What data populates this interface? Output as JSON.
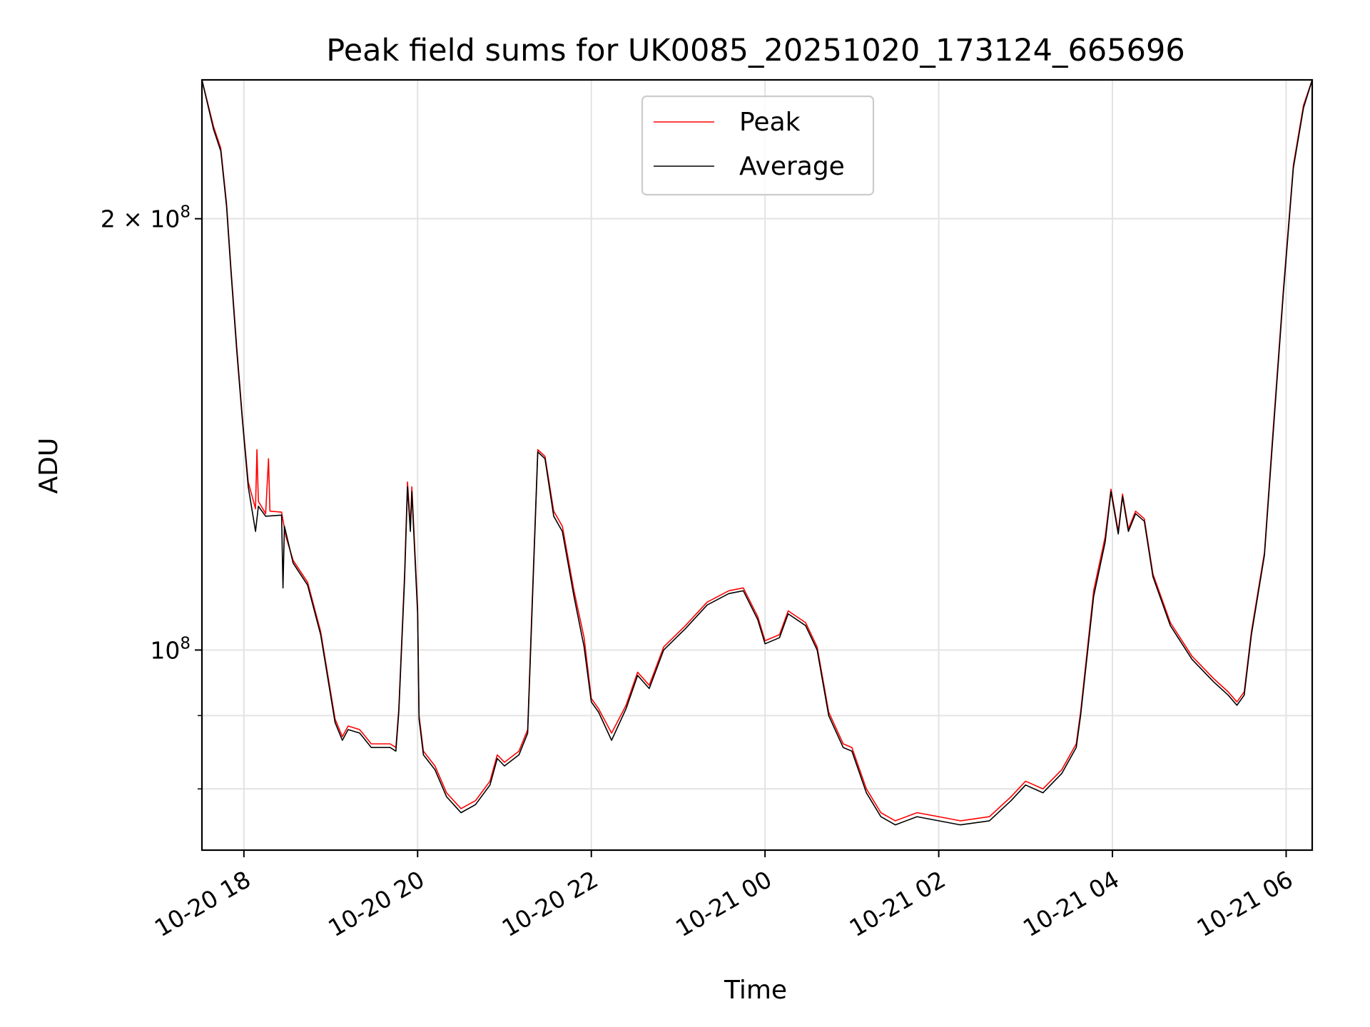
{
  "chart_data": {
    "type": "line",
    "title": "Peak field sums for UK0085_20251020_173124_665696",
    "xlabel": "Time",
    "ylabel": "ADU",
    "y_scale": "log",
    "grid": true,
    "legend_position": "upper center",
    "xlim": [
      "2025-10-20 17:31",
      "2025-10-21 06:18"
    ],
    "ylim": [
      72500000,
      250000000
    ],
    "x_ticks": [
      {
        "value": "2025-10-20 18:00",
        "label": "10-20 18"
      },
      {
        "value": "2025-10-20 20:00",
        "label": "10-20 20"
      },
      {
        "value": "2025-10-20 22:00",
        "label": "10-20 22"
      },
      {
        "value": "2025-10-21 00:00",
        "label": "10-21 00"
      },
      {
        "value": "2025-10-21 02:00",
        "label": "10-21 02"
      },
      {
        "value": "2025-10-21 04:00",
        "label": "10-21 04"
      },
      {
        "value": "2025-10-21 06:00",
        "label": "10-21 06"
      }
    ],
    "y_ticks_major": [
      {
        "value": 100000000,
        "label_base": "10",
        "label_exp": "8",
        "label_mult": ""
      },
      {
        "value": 200000000,
        "label_base": "10",
        "label_exp": "8",
        "label_mult": "2 × "
      }
    ],
    "y_ticks_minor": [
      80000000,
      90000000
    ],
    "colors": {
      "Peak": "#ff0000",
      "Average": "#000000"
    },
    "series": [
      {
        "name": "Peak",
        "color": "#ff0000",
        "points": [
          [
            "2025-10-20 17:31",
            250000000
          ],
          [
            "2025-10-20 17:39",
            232000000
          ],
          [
            "2025-10-20 17:44",
            224000000
          ],
          [
            "2025-10-20 17:48",
            205000000
          ],
          [
            "2025-10-20 17:51",
            185000000
          ],
          [
            "2025-10-20 17:55",
            163000000
          ],
          [
            "2025-10-20 17:59",
            145000000
          ],
          [
            "2025-10-20 18:03",
            131000000
          ],
          [
            "2025-10-20 18:08",
            125500000
          ],
          [
            "2025-10-20 18:09",
            138000000
          ],
          [
            "2025-10-20 18:10",
            127000000
          ],
          [
            "2025-10-20 18:15",
            124500000
          ],
          [
            "2025-10-20 18:17",
            136000000
          ],
          [
            "2025-10-20 18:18",
            125000000
          ],
          [
            "2025-10-20 18:26",
            124800000
          ],
          [
            "2025-10-20 18:29",
            120000000
          ],
          [
            "2025-10-20 18:34",
            115500000
          ],
          [
            "2025-10-20 18:44",
            111500000
          ],
          [
            "2025-10-20 18:53",
            103000000
          ],
          [
            "2025-10-20 19:03",
            89500000
          ],
          [
            "2025-10-20 19:08",
            87000000
          ],
          [
            "2025-10-20 19:12",
            88500000
          ],
          [
            "2025-10-20 19:20",
            88000000
          ],
          [
            "2025-10-20 19:28",
            86000000
          ],
          [
            "2025-10-20 19:41",
            86000000
          ],
          [
            "2025-10-20 19:45",
            85500000
          ],
          [
            "2025-10-20 19:47",
            91000000
          ],
          [
            "2025-10-20 19:51",
            113000000
          ],
          [
            "2025-10-20 19:53",
            131000000
          ],
          [
            "2025-10-20 19:55",
            122000000
          ],
          [
            "2025-10-20 19:56",
            130000000
          ],
          [
            "2025-10-20 19:58",
            118000000
          ],
          [
            "2025-10-20 20:00",
            107000000
          ],
          [
            "2025-10-20 20:01",
            90000000
          ],
          [
            "2025-10-20 20:04",
            85000000
          ],
          [
            "2025-10-20 20:12",
            83000000
          ],
          [
            "2025-10-20 20:20",
            79500000
          ],
          [
            "2025-10-20 20:30",
            77500000
          ],
          [
            "2025-10-20 20:40",
            78500000
          ],
          [
            "2025-10-20 20:50",
            81000000
          ],
          [
            "2025-10-20 20:55",
            84500000
          ],
          [
            "2025-10-20 21:00",
            83500000
          ],
          [
            "2025-10-20 21:10",
            85000000
          ],
          [
            "2025-10-20 21:16",
            88000000
          ],
          [
            "2025-10-20 21:19",
            107000000
          ],
          [
            "2025-10-20 21:23",
            138000000
          ],
          [
            "2025-10-20 21:28",
            136500000
          ],
          [
            "2025-10-20 21:34",
            125000000
          ],
          [
            "2025-10-20 21:40",
            122000000
          ],
          [
            "2025-10-20 21:48",
            110000000
          ],
          [
            "2025-10-20 21:55",
            102000000
          ],
          [
            "2025-10-20 22:00",
            92500000
          ],
          [
            "2025-10-20 22:05",
            91000000
          ],
          [
            "2025-10-20 22:14",
            87500000
          ],
          [
            "2025-10-20 22:24",
            91500000
          ],
          [
            "2025-10-20 22:32",
            96500000
          ],
          [
            "2025-10-20 22:40",
            94500000
          ],
          [
            "2025-10-20 22:50",
            100500000
          ],
          [
            "2025-10-20 23:05",
            104000000
          ],
          [
            "2025-10-20 23:20",
            108000000
          ],
          [
            "2025-10-20 23:35",
            110000000
          ],
          [
            "2025-10-20 23:45",
            110500000
          ],
          [
            "2025-10-20 23:55",
            105500000
          ],
          [
            "2025-10-21 00:00",
            101500000
          ],
          [
            "2025-10-21 00:10",
            102500000
          ],
          [
            "2025-10-21 00:16",
            106500000
          ],
          [
            "2025-10-21 00:28",
            104500000
          ],
          [
            "2025-10-21 00:36",
            100500000
          ],
          [
            "2025-10-21 00:44",
            90500000
          ],
          [
            "2025-10-21 00:54",
            86000000
          ],
          [
            "2025-10-21 01:00",
            85500000
          ],
          [
            "2025-10-21 01:10",
            80000000
          ],
          [
            "2025-10-21 01:20",
            77000000
          ],
          [
            "2025-10-21 01:30",
            76000000
          ],
          [
            "2025-10-21 01:45",
            77000000
          ],
          [
            "2025-10-21 02:00",
            76500000
          ],
          [
            "2025-10-21 02:15",
            76000000
          ],
          [
            "2025-10-21 02:35",
            76500000
          ],
          [
            "2025-10-21 02:50",
            79000000
          ],
          [
            "2025-10-21 03:00",
            81000000
          ],
          [
            "2025-10-21 03:12",
            80000000
          ],
          [
            "2025-10-21 03:25",
            82500000
          ],
          [
            "2025-10-21 03:35",
            86000000
          ],
          [
            "2025-10-21 03:38",
            90500000
          ],
          [
            "2025-10-21 03:47",
            110000000
          ],
          [
            "2025-10-21 03:55",
            120000000
          ],
          [
            "2025-10-21 03:59",
            129500000
          ],
          [
            "2025-10-21 04:04",
            121000000
          ],
          [
            "2025-10-21 04:07",
            128500000
          ],
          [
            "2025-10-21 04:11",
            121500000
          ],
          [
            "2025-10-21 04:16",
            125000000
          ],
          [
            "2025-10-21 04:22",
            123500000
          ],
          [
            "2025-10-21 04:28",
            113000000
          ],
          [
            "2025-10-21 04:40",
            104500000
          ],
          [
            "2025-10-21 04:55",
            99000000
          ],
          [
            "2025-10-21 05:10",
            95500000
          ],
          [
            "2025-10-21 05:20",
            93500000
          ],
          [
            "2025-10-21 05:26",
            92000000
          ],
          [
            "2025-10-21 05:31",
            93500000
          ],
          [
            "2025-10-21 05:36",
            103000000
          ],
          [
            "2025-10-21 05:45",
            117000000
          ],
          [
            "2025-10-21 05:50",
            138000000
          ],
          [
            "2025-10-21 05:58",
            178000000
          ],
          [
            "2025-10-21 06:05",
            218000000
          ],
          [
            "2025-10-21 06:12",
            240000000
          ],
          [
            "2025-10-21 06:18",
            250000000
          ]
        ]
      },
      {
        "name": "Average",
        "color": "#000000",
        "points": [
          [
            "2025-10-20 17:31",
            250000000
          ],
          [
            "2025-10-20 17:39",
            231000000
          ],
          [
            "2025-10-20 17:44",
            223000000
          ],
          [
            "2025-10-20 17:48",
            204000000
          ],
          [
            "2025-10-20 17:51",
            184000000
          ],
          [
            "2025-10-20 17:55",
            162000000
          ],
          [
            "2025-10-20 17:59",
            144500000
          ],
          [
            "2025-10-20 18:03",
            130000000
          ],
          [
            "2025-10-20 18:08",
            121000000
          ],
          [
            "2025-10-20 18:10",
            126000000
          ],
          [
            "2025-10-20 18:15",
            124000000
          ],
          [
            "2025-10-20 18:26",
            124200000
          ],
          [
            "2025-10-20 18:27",
            110500000
          ],
          [
            "2025-10-20 18:28",
            122000000
          ],
          [
            "2025-10-20 18:34",
            115000000
          ],
          [
            "2025-10-20 18:44",
            111000000
          ],
          [
            "2025-10-20 18:53",
            102500000
          ],
          [
            "2025-10-20 19:03",
            89000000
          ],
          [
            "2025-10-20 19:08",
            86500000
          ],
          [
            "2025-10-20 19:12",
            88000000
          ],
          [
            "2025-10-20 19:20",
            87500000
          ],
          [
            "2025-10-20 19:28",
            85500000
          ],
          [
            "2025-10-20 19:41",
            85500000
          ],
          [
            "2025-10-20 19:45",
            85000000
          ],
          [
            "2025-10-20 19:47",
            90500000
          ],
          [
            "2025-10-20 19:51",
            112000000
          ],
          [
            "2025-10-20 19:53",
            130000000
          ],
          [
            "2025-10-20 19:55",
            121000000
          ],
          [
            "2025-10-20 19:56",
            129000000
          ],
          [
            "2025-10-20 19:58",
            117000000
          ],
          [
            "2025-10-20 20:00",
            106000000
          ],
          [
            "2025-10-20 20:01",
            89500000
          ],
          [
            "2025-10-20 20:04",
            84500000
          ],
          [
            "2025-10-20 20:12",
            82500000
          ],
          [
            "2025-10-20 20:20",
            79000000
          ],
          [
            "2025-10-20 20:30",
            77000000
          ],
          [
            "2025-10-20 20:40",
            78000000
          ],
          [
            "2025-10-20 20:50",
            80500000
          ],
          [
            "2025-10-20 20:55",
            84000000
          ],
          [
            "2025-10-20 21:00",
            83000000
          ],
          [
            "2025-10-20 21:10",
            84500000
          ],
          [
            "2025-10-20 21:16",
            87500000
          ],
          [
            "2025-10-20 21:19",
            106000000
          ],
          [
            "2025-10-20 21:23",
            137500000
          ],
          [
            "2025-10-20 21:28",
            136000000
          ],
          [
            "2025-10-20 21:34",
            124000000
          ],
          [
            "2025-10-20 21:40",
            121000000
          ],
          [
            "2025-10-20 21:48",
            109000000
          ],
          [
            "2025-10-20 21:55",
            100500000
          ],
          [
            "2025-10-20 22:00",
            92000000
          ],
          [
            "2025-10-20 22:05",
            90500000
          ],
          [
            "2025-10-20 22:14",
            86500000
          ],
          [
            "2025-10-20 22:24",
            91000000
          ],
          [
            "2025-10-20 22:32",
            96000000
          ],
          [
            "2025-10-20 22:40",
            94000000
          ],
          [
            "2025-10-20 22:50",
            100000000
          ],
          [
            "2025-10-20 23:05",
            103500000
          ],
          [
            "2025-10-20 23:20",
            107500000
          ],
          [
            "2025-10-20 23:35",
            109500000
          ],
          [
            "2025-10-20 23:45",
            110000000
          ],
          [
            "2025-10-20 23:55",
            105000000
          ],
          [
            "2025-10-21 00:00",
            101000000
          ],
          [
            "2025-10-21 00:10",
            102000000
          ],
          [
            "2025-10-21 00:16",
            106000000
          ],
          [
            "2025-10-21 00:28",
            104000000
          ],
          [
            "2025-10-21 00:36",
            100000000
          ],
          [
            "2025-10-21 00:44",
            90000000
          ],
          [
            "2025-10-21 00:54",
            85500000
          ],
          [
            "2025-10-21 01:00",
            85000000
          ],
          [
            "2025-10-21 01:10",
            79500000
          ],
          [
            "2025-10-21 01:20",
            76500000
          ],
          [
            "2025-10-21 01:30",
            75500000
          ],
          [
            "2025-10-21 01:45",
            76500000
          ],
          [
            "2025-10-21 02:00",
            76000000
          ],
          [
            "2025-10-21 02:15",
            75500000
          ],
          [
            "2025-10-21 02:35",
            76000000
          ],
          [
            "2025-10-21 02:50",
            78500000
          ],
          [
            "2025-10-21 03:00",
            80500000
          ],
          [
            "2025-10-21 03:12",
            79500000
          ],
          [
            "2025-10-21 03:25",
            82000000
          ],
          [
            "2025-10-21 03:35",
            85500000
          ],
          [
            "2025-10-21 03:38",
            90000000
          ],
          [
            "2025-10-21 03:47",
            109000000
          ],
          [
            "2025-10-21 03:55",
            119000000
          ],
          [
            "2025-10-21 03:59",
            129000000
          ],
          [
            "2025-10-21 04:04",
            120500000
          ],
          [
            "2025-10-21 04:07",
            128000000
          ],
          [
            "2025-10-21 04:11",
            121000000
          ],
          [
            "2025-10-21 04:16",
            124500000
          ],
          [
            "2025-10-21 04:22",
            123000000
          ],
          [
            "2025-10-21 04:28",
            112500000
          ],
          [
            "2025-10-21 04:40",
            104000000
          ],
          [
            "2025-10-21 04:55",
            98500000
          ],
          [
            "2025-10-21 05:10",
            95000000
          ],
          [
            "2025-10-21 05:20",
            93000000
          ],
          [
            "2025-10-21 05:26",
            91500000
          ],
          [
            "2025-10-21 05:31",
            93000000
          ],
          [
            "2025-10-21 05:36",
            102500000
          ],
          [
            "2025-10-21 05:45",
            116500000
          ],
          [
            "2025-10-21 05:50",
            137000000
          ],
          [
            "2025-10-21 05:58",
            177000000
          ],
          [
            "2025-10-21 06:05",
            217000000
          ],
          [
            "2025-10-21 06:12",
            239000000
          ],
          [
            "2025-10-21 06:18",
            250000000
          ]
        ]
      }
    ]
  }
}
